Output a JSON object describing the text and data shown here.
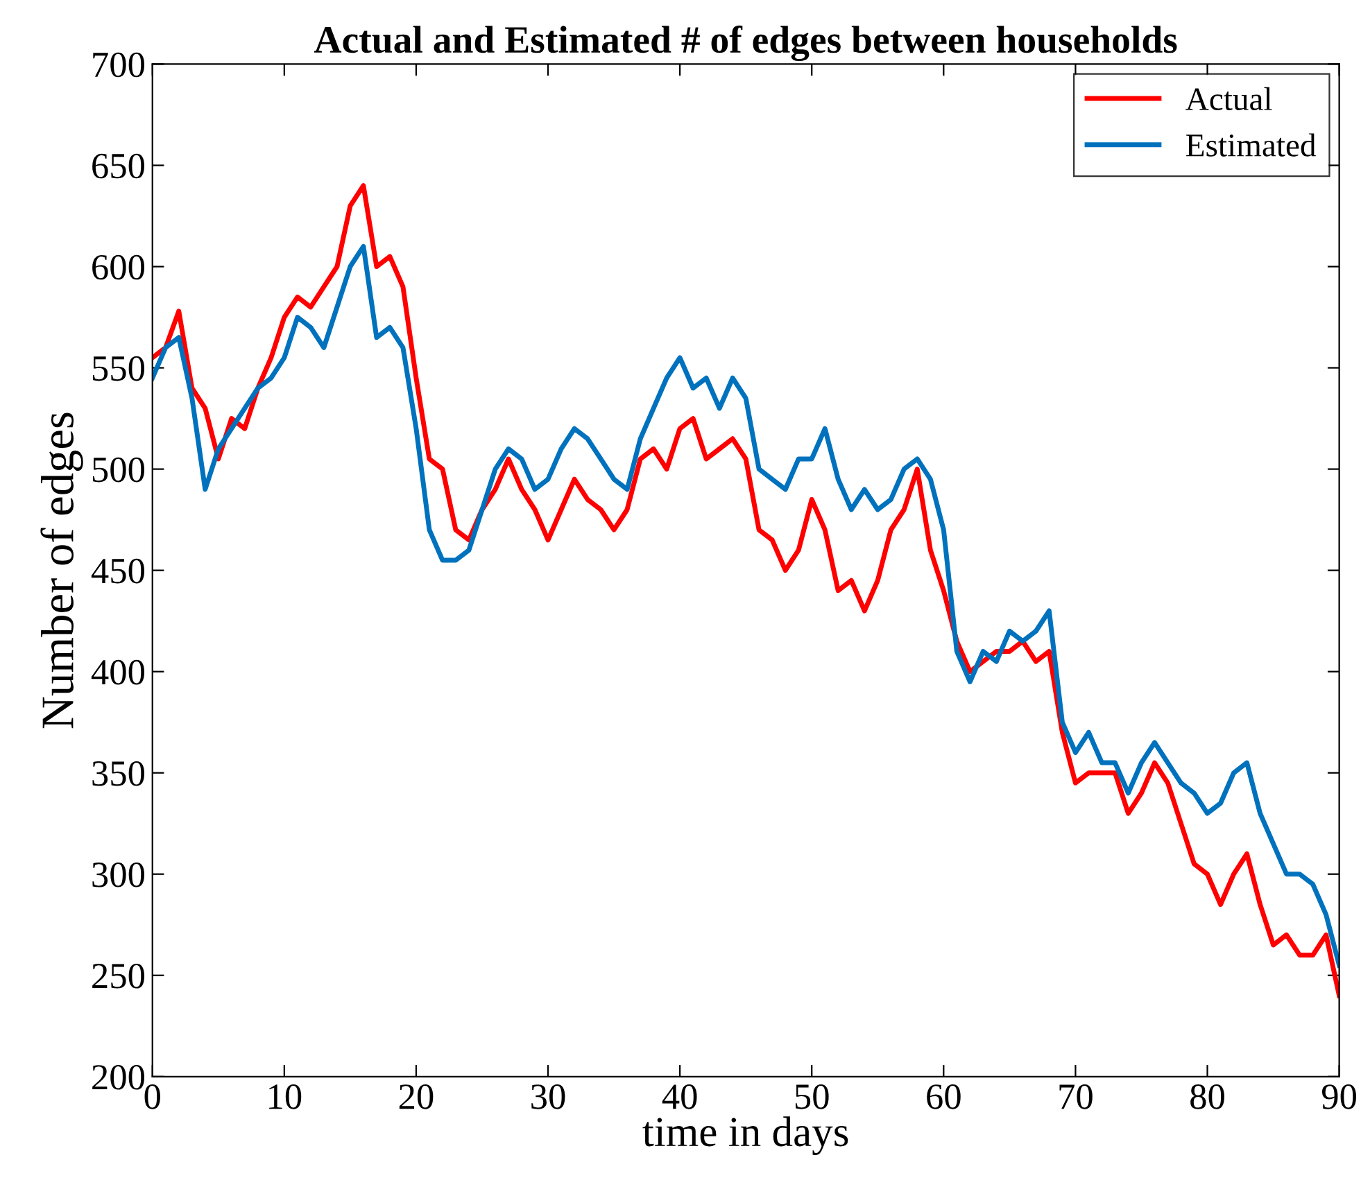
{
  "chart_data": {
    "type": "line",
    "title": "Actual and Estimated # of edges between households",
    "xlabel": "time in days",
    "ylabel": "Number of edges",
    "x": [
      0,
      1,
      2,
      3,
      4,
      5,
      6,
      7,
      8,
      9,
      10,
      11,
      12,
      13,
      14,
      15,
      16,
      17,
      18,
      19,
      20,
      21,
      22,
      23,
      24,
      25,
      26,
      27,
      28,
      29,
      30,
      31,
      32,
      33,
      34,
      35,
      36,
      37,
      38,
      39,
      40,
      41,
      42,
      43,
      44,
      45,
      46,
      47,
      48,
      49,
      50,
      51,
      52,
      53,
      54,
      55,
      56,
      57,
      58,
      59,
      60,
      61,
      62,
      63,
      64,
      65,
      66,
      67,
      68,
      69,
      70,
      71,
      72,
      73,
      74,
      75,
      76,
      77,
      78,
      79,
      80,
      81,
      82,
      83,
      84,
      85,
      86,
      87,
      88,
      89,
      90
    ],
    "series": [
      {
        "name": "Actual",
        "color": "#ff0000",
        "values": [
          555,
          560,
          578,
          540,
          530,
          505,
          525,
          520,
          540,
          555,
          575,
          585,
          580,
          590,
          600,
          630,
          640,
          600,
          605,
          590,
          545,
          505,
          500,
          470,
          465,
          480,
          490,
          505,
          490,
          480,
          465,
          480,
          495,
          485,
          480,
          470,
          480,
          505,
          510,
          500,
          520,
          525,
          505,
          510,
          515,
          505,
          470,
          465,
          450,
          460,
          485,
          470,
          440,
          445,
          430,
          445,
          470,
          480,
          500,
          460,
          440,
          415,
          400,
          405,
          410,
          410,
          415,
          405,
          410,
          370,
          345,
          350,
          350,
          350,
          330,
          340,
          355,
          345,
          325,
          305,
          300,
          285,
          300,
          310,
          285,
          265,
          270,
          260,
          260,
          270,
          240
        ]
      },
      {
        "name": "Estimated",
        "color": "#0072bd",
        "values": [
          545,
          560,
          565,
          535,
          490,
          510,
          520,
          530,
          540,
          545,
          555,
          575,
          570,
          560,
          580,
          600,
          610,
          565,
          570,
          560,
          520,
          470,
          455,
          455,
          460,
          480,
          500,
          510,
          505,
          490,
          495,
          510,
          520,
          515,
          505,
          495,
          490,
          515,
          530,
          545,
          555,
          540,
          545,
          530,
          545,
          535,
          500,
          495,
          490,
          505,
          505,
          520,
          495,
          480,
          490,
          480,
          485,
          500,
          505,
          495,
          470,
          410,
          395,
          410,
          405,
          420,
          415,
          420,
          430,
          375,
          360,
          370,
          355,
          355,
          340,
          355,
          365,
          355,
          345,
          340,
          330,
          335,
          350,
          355,
          330,
          315,
          300,
          300,
          295,
          280,
          255
        ]
      }
    ],
    "xlim": [
      0,
      90
    ],
    "xticks": [
      0,
      10,
      20,
      30,
      40,
      50,
      60,
      70,
      80,
      90
    ],
    "ylim": [
      200,
      700
    ],
    "yticks": [
      200,
      250,
      300,
      350,
      400,
      450,
      500,
      550,
      600,
      650,
      700
    ],
    "grid": false,
    "legend": "top right",
    "marker": "none",
    "line_style": "solid"
  }
}
